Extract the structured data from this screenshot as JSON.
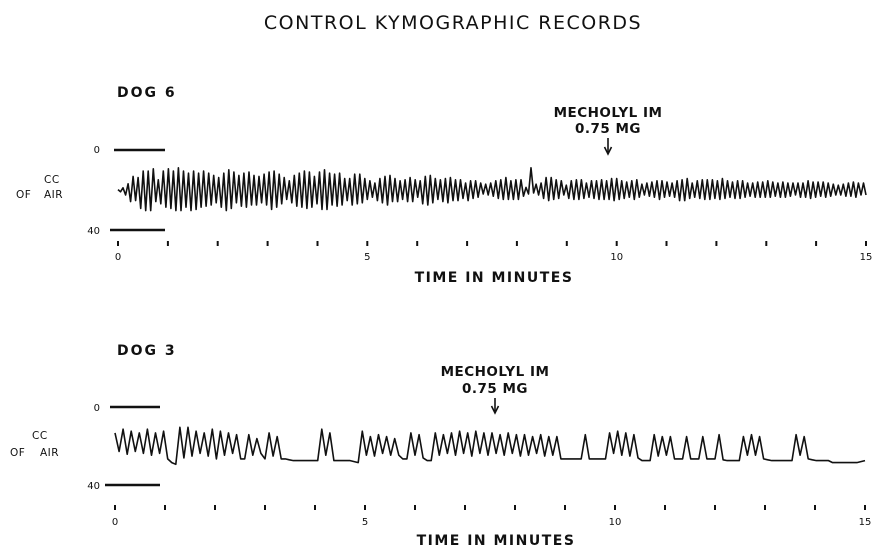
{
  "title": "CONTROL KYMOGRAPHIC RECORDS",
  "chart_data": [
    {
      "type": "line",
      "title": "DOG 6",
      "xlabel": "TIME IN MINUTES",
      "ylabel_top": "CC",
      "ylabel_bottom_left": "OF",
      "ylabel_bottom_right": "AIR",
      "x_range": [
        0,
        15
      ],
      "y_range": [
        0,
        40
      ],
      "y_ticks": [
        "0",
        "40"
      ],
      "x_tick_labels": [
        {
          "x": 0,
          "label": "0"
        },
        {
          "x": 5,
          "label": "5"
        },
        {
          "x": 10,
          "label": "10"
        },
        {
          "x": 15,
          "label": "15"
        }
      ],
      "x_ticks": [
        0,
        1,
        2,
        3,
        4,
        5,
        6,
        7,
        8,
        9,
        10,
        11,
        12,
        13,
        14,
        15
      ],
      "annotation": {
        "line1": "MECHOLYL IM",
        "line2": "0.75 MG",
        "x": 9.85
      },
      "series": [
        {
          "values": [
            19.8,
            20.9,
            18.9,
            22.5,
            16.9,
            25.8,
            13.2,
            25.3,
            13.8,
            29.2,
            10.5,
            30.3,
            10.5,
            30.3,
            9.4,
            25.8,
            14.9,
            26.9,
            10.5,
            28.6,
            9.4,
            29.2,
            10.5,
            30.3,
            8.9,
            30.3,
            10.5,
            28.6,
            11.6,
            30.3,
            10.5,
            29.7,
            11.6,
            28.6,
            10.5,
            28.1,
            11.6,
            27.5,
            12.7,
            26.4,
            13.8,
            28.6,
            11.6,
            30.3,
            9.9,
            29.2,
            11.0,
            26.4,
            12.7,
            28.1,
            11.6,
            28.6,
            11.0,
            27.5,
            12.7,
            27.5,
            13.2,
            26.4,
            12.1,
            27.5,
            11.0,
            29.7,
            10.5,
            28.6,
            12.1,
            26.9,
            13.8,
            24.7,
            15.4,
            26.4,
            12.7,
            28.1,
            11.6,
            28.6,
            10.5,
            29.2,
            11.0,
            28.6,
            13.2,
            26.9,
            11.0,
            29.7,
            9.9,
            29.7,
            11.6,
            27.5,
            12.1,
            28.1,
            11.6,
            27.5,
            14.3,
            25.3,
            14.3,
            27.5,
            12.1,
            26.9,
            12.1,
            26.4,
            14.3,
            24.7,
            15.4,
            23.6,
            16.5,
            25.3,
            14.3,
            26.4,
            13.2,
            27.5,
            12.7,
            25.8,
            14.3,
            25.8,
            15.4,
            24.7,
            14.9,
            25.8,
            13.8,
            25.8,
            14.9,
            23.6,
            15.4,
            26.9,
            13.2,
            27.5,
            12.7,
            26.4,
            14.3,
            24.7,
            14.9,
            25.8,
            14.3,
            26.4,
            13.8,
            25.3,
            14.9,
            25.3,
            14.9,
            24.2,
            16.5,
            25.3,
            15.4,
            24.2,
            15.4,
            23.6,
            16.5,
            22.0,
            17.1,
            22.5,
            16.5,
            23.1,
            15.4,
            24.2,
            14.9,
            24.7,
            13.8,
            24.7,
            15.4,
            24.7,
            14.9,
            24.7,
            14.9,
            23.1,
            18.7,
            22.0,
            8.9,
            21.5,
            17.1,
            22.5,
            16.5,
            24.2,
            13.8,
            25.3,
            13.8,
            24.7,
            14.9,
            24.2,
            15.4,
            22.5,
            17.6,
            24.2,
            15.4,
            24.7,
            14.9,
            24.7,
            14.9,
            24.2,
            16.5,
            23.6,
            15.4,
            24.2,
            15.4,
            24.7,
            14.9,
            24.7,
            15.4,
            24.7,
            14.3,
            25.3,
            14.3,
            24.7,
            15.4,
            24.2,
            16.0,
            23.6,
            15.4,
            24.7,
            14.9,
            23.6,
            17.1,
            22.5,
            16.5,
            23.1,
            16.0,
            23.6,
            15.4,
            24.7,
            15.4,
            23.6,
            16.0,
            23.1,
            16.5,
            23.6,
            15.4,
            25.3,
            14.9,
            25.3,
            14.3,
            24.2,
            16.5,
            23.6,
            15.4,
            24.2,
            14.9,
            24.7,
            14.9,
            24.7,
            14.9,
            24.2,
            15.4,
            24.7,
            14.3,
            24.2,
            15.4,
            23.6,
            16.0,
            24.2,
            15.4,
            24.2,
            15.4,
            23.6,
            16.5,
            23.1,
            16.5,
            23.6,
            16.0,
            23.6,
            16.0,
            23.6,
            15.4,
            23.6,
            16.0,
            23.1,
            16.5,
            23.6,
            16.0,
            23.6,
            16.5,
            23.1,
            16.5,
            22.5,
            16.5,
            23.6,
            16.5,
            23.6,
            15.4,
            24.2,
            16.0,
            23.6,
            16.0,
            23.1,
            16.0,
            23.6,
            16.5,
            23.1,
            17.1,
            22.5,
            17.6,
            22.5,
            17.1,
            23.1,
            16.5,
            23.1,
            16.0,
            23.6,
            16.5,
            22.5,
            16.5,
            22.5
          ]
        }
      ]
    },
    {
      "type": "line",
      "title": "DOG 3",
      "xlabel": "TIME IN MINUTES",
      "ylabel_top": "CC",
      "ylabel_bottom_left": "OF",
      "ylabel_bottom_right": "AIR",
      "x_range": [
        0,
        15
      ],
      "y_range": [
        0,
        40
      ],
      "y_ticks": [
        "0",
        "40"
      ],
      "x_tick_labels": [
        {
          "x": 0,
          "label": "0"
        },
        {
          "x": 5,
          "label": "5"
        },
        {
          "x": 10,
          "label": "10"
        },
        {
          "x": 15,
          "label": "15"
        }
      ],
      "x_ticks": [
        0,
        1,
        2,
        3,
        4,
        5,
        6,
        7,
        8,
        9,
        10,
        11,
        12,
        13,
        14,
        15
      ],
      "annotation": {
        "line1": "MECHOLYL IM",
        "line2": "0.75 MG",
        "x": 7.6
      },
      "series": [
        {
          "values": [
            13.3,
            22.8,
            11.4,
            24.2,
            12.4,
            22.8,
            13.3,
            23.8,
            11.4,
            24.7,
            13.3,
            23.8,
            12.4,
            26.6,
            28.5,
            29.4,
            10.4,
            26.1,
            10.4,
            25.2,
            12.4,
            23.8,
            13.3,
            25.2,
            11.4,
            26.6,
            12.4,
            24.7,
            13.3,
            23.8,
            14.2,
            26.6,
            26.6,
            14.2,
            24.7,
            16.2,
            23.8,
            26.6,
            13.3,
            25.2,
            15.2,
            26.6,
            26.6,
            27.1,
            27.5,
            27.5,
            27.5,
            27.5,
            27.5,
            27.5,
            27.5,
            11.4,
            24.7,
            13.3,
            27.5,
            27.5,
            27.5,
            27.5,
            27.5,
            28.0,
            28.5,
            12.4,
            24.7,
            15.2,
            25.2,
            14.2,
            23.8,
            15.2,
            24.7,
            16.2,
            24.7,
            26.6,
            26.6,
            13.3,
            24.7,
            14.2,
            26.1,
            27.5,
            27.5,
            13.3,
            24.7,
            14.2,
            23.8,
            13.3,
            24.7,
            12.4,
            23.8,
            13.3,
            25.2,
            12.4,
            23.8,
            13.3,
            24.7,
            13.3,
            23.8,
            14.2,
            24.7,
            13.3,
            23.8,
            14.2,
            25.2,
            14.2,
            24.7,
            15.2,
            23.8,
            14.2,
            25.2,
            15.2,
            24.7,
            15.2,
            26.6,
            26.6,
            26.6,
            26.6,
            26.6,
            26.6,
            14.2,
            26.6,
            26.6,
            26.6,
            26.6,
            26.6,
            13.3,
            23.8,
            12.4,
            24.7,
            13.3,
            25.2,
            14.2,
            26.1,
            27.5,
            27.5,
            27.5,
            14.2,
            25.2,
            15.2,
            24.7,
            15.2,
            26.6,
            26.6,
            26.6,
            15.2,
            26.6,
            26.6,
            26.6,
            15.2,
            26.6,
            26.6,
            26.6,
            14.2,
            27.1,
            27.5,
            27.5,
            27.5,
            27.5,
            15.2,
            24.7,
            14.2,
            24.7,
            15.2,
            26.6,
            27.1,
            27.5,
            27.5,
            27.5,
            27.5,
            27.5,
            27.5,
            14.2,
            24.7,
            15.2,
            26.6,
            27.1,
            27.5,
            27.5,
            27.5,
            27.5,
            28.5,
            28.5,
            28.5,
            28.5,
            28.5,
            28.5,
            28.5,
            28.0,
            27.5
          ]
        }
      ]
    }
  ]
}
